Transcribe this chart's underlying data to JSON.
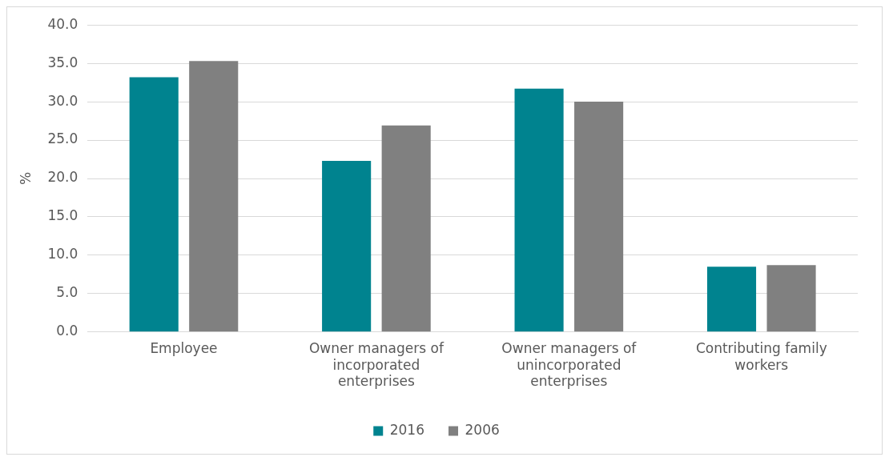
{
  "chart_data": {
    "type": "bar",
    "ylabel": "%",
    "categories": [
      "Employee",
      "Owner managers of incorporated enterprises",
      "Owner managers of unincorporated enterprises",
      "Contributing family workers"
    ],
    "series": [
      {
        "name": "2016",
        "color": "#00838f",
        "values": [
          33.2,
          22.3,
          31.7,
          8.5
        ]
      },
      {
        "name": "2006",
        "color": "#808080",
        "values": [
          35.3,
          26.9,
          30.0,
          8.7
        ]
      }
    ],
    "ylim": [
      0,
      40
    ],
    "yticks": [
      {
        "value": 0,
        "label": "0.0"
      },
      {
        "value": 5,
        "label": "5.0"
      },
      {
        "value": 10,
        "label": "10.0"
      },
      {
        "value": 15,
        "label": "15.0"
      },
      {
        "value": 20,
        "label": "20.0"
      },
      {
        "value": 25,
        "label": "25.0"
      },
      {
        "value": 30,
        "label": "30.0"
      },
      {
        "value": 35,
        "label": "35.0"
      },
      {
        "value": 40,
        "label": "40.0"
      }
    ],
    "grid": "y",
    "legend": "bottom"
  }
}
